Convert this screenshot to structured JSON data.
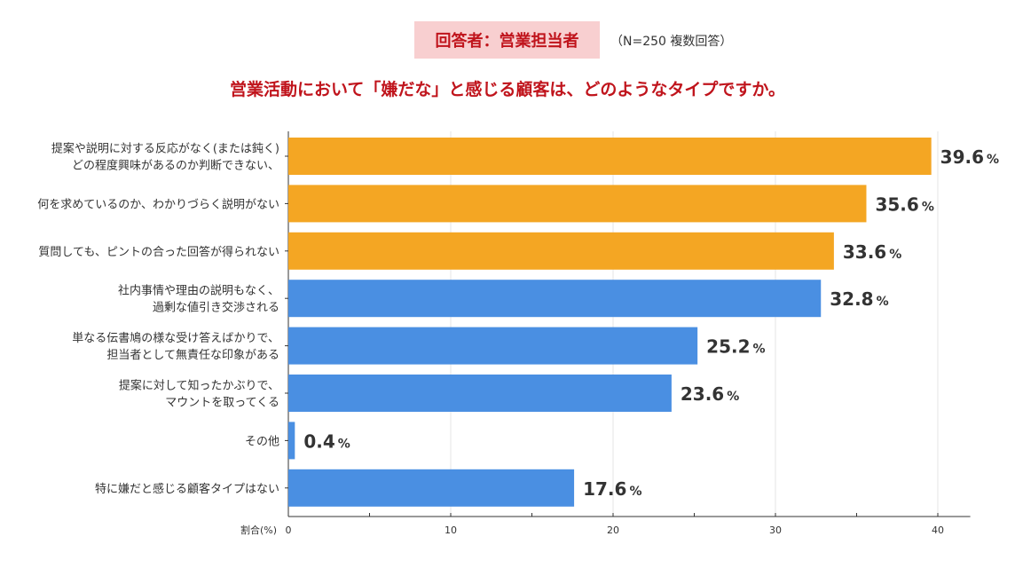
{
  "header": {
    "respondent": "回答者：営業担当者",
    "note": "（N=250 複数回答）",
    "title": "営業活動において「嫌だな」と感じる顧客は、どのようなタイプですか。"
  },
  "chart_data": {
    "type": "bar",
    "orientation": "horizontal",
    "title": "営業活動において「嫌だな」と感じる顧客は、どのようなタイプですか。",
    "xlabel": "割合(%)",
    "xlim": [
      0,
      42
    ],
    "xticks": [
      0,
      10,
      20,
      30,
      40
    ],
    "grid": true,
    "value_suffix": "%",
    "categories": [
      [
        "提案や説明に対する反応がなく(または鈍く)",
        "どの程度興味があるのか判断できない、"
      ],
      [
        "何を求めているのか、わかりづらく説明がない"
      ],
      [
        "質問しても、ピントの合った回答が得られない"
      ],
      [
        "社内事情や理由の説明もなく、",
        "過剰な値引き交渉される"
      ],
      [
        "単なる伝書鳩の様な受け答えばかりで、",
        "担当者として無責任な印象がある"
      ],
      [
        "提案に対して知ったかぶりで、",
        "マウントを取ってくる"
      ],
      [
        "その他"
      ],
      [
        "特に嫌だと感じる顧客タイプはない"
      ]
    ],
    "values": [
      39.6,
      35.6,
      33.6,
      32.8,
      25.2,
      23.6,
      0.4,
      17.6
    ],
    "highlight": [
      true,
      true,
      true,
      false,
      false,
      false,
      false,
      false
    ],
    "colors": {
      "highlight": "#f4a623",
      "default": "#4a8fe2"
    }
  }
}
